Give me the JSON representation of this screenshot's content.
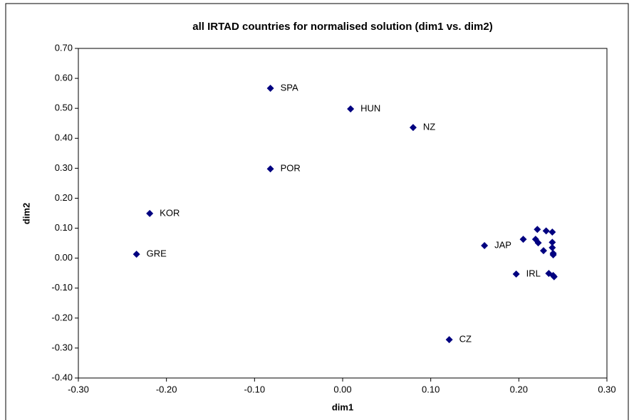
{
  "chart_data": {
    "type": "scatter",
    "title": "all IRTAD countries for normalised solution (dim1 vs. dim2)",
    "xlabel": "dim1",
    "ylabel": "dim2",
    "color": "#000080",
    "xlim": [
      -0.3,
      0.3
    ],
    "ylim": [
      -0.4,
      0.7
    ],
    "xticks": [
      {
        "value": -0.3,
        "label": "-0.30"
      },
      {
        "value": -0.2,
        "label": "-0.20"
      },
      {
        "value": -0.1,
        "label": "-0.10"
      },
      {
        "value": 0,
        "label": "0.00"
      },
      {
        "value": 0.1,
        "label": "0.10"
      },
      {
        "value": 0.2,
        "label": "0.20"
      },
      {
        "value": 0.3,
        "label": "0.30"
      }
    ],
    "yticks": [
      {
        "value": -0.4,
        "label": "-0.40"
      },
      {
        "value": -0.3,
        "label": "-0.30"
      },
      {
        "value": -0.2,
        "label": "-0.20"
      },
      {
        "value": -0.1,
        "label": "-0.10"
      },
      {
        "value": 0,
        "label": "0.00"
      },
      {
        "value": 0.1,
        "label": "0.10"
      },
      {
        "value": 0.2,
        "label": "0.20"
      },
      {
        "value": 0.3,
        "label": "0.30"
      },
      {
        "value": 0.4,
        "label": "0.40"
      },
      {
        "value": 0.5,
        "label": "0.50"
      },
      {
        "value": 0.6,
        "label": "0.60"
      },
      {
        "value": 0.7,
        "label": "0.70"
      }
    ],
    "x": [
      -0.082,
      0.009,
      0.08,
      -0.082,
      -0.219,
      -0.234,
      0.161,
      0.197,
      0.121,
      0.205,
      0.221,
      0.231,
      0.238,
      0.219,
      0.222,
      0.228,
      0.238,
      0.238,
      0.239,
      0.239,
      0.234,
      0.239,
      0.24
    ],
    "values": [
      0.567,
      0.498,
      0.436,
      0.298,
      0.149,
      0.013,
      0.042,
      -0.053,
      -0.272,
      0.063,
      0.096,
      0.091,
      0.087,
      0.063,
      0.051,
      0.025,
      0.053,
      0.035,
      0.016,
      0.011,
      -0.051,
      -0.058,
      -0.062
    ],
    "labels": [
      "SPA",
      "HUN",
      "NZ",
      "POR",
      "KOR",
      "GRE",
      "JAP",
      "IRL",
      "CZ",
      null,
      null,
      null,
      null,
      null,
      null,
      null,
      null,
      null,
      null,
      null,
      null,
      null,
      null
    ]
  }
}
